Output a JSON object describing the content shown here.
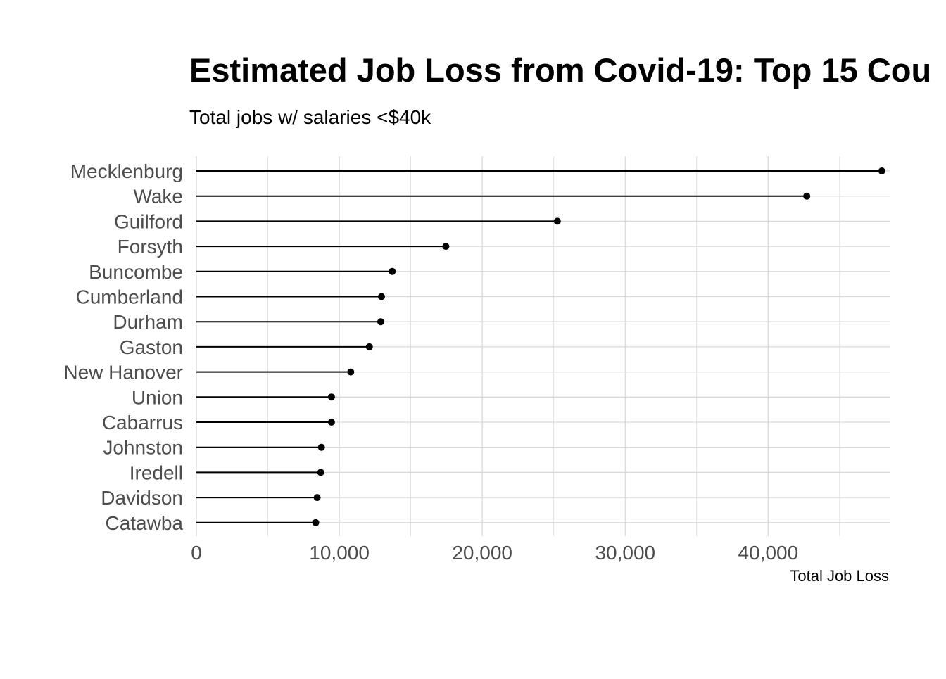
{
  "chart_data": {
    "type": "lollipop",
    "title": "Estimated Job Loss from Covid-19: Top 15 Cou",
    "subtitle": "Total jobs w/ salaries <$40k",
    "xlabel": "Total Job Loss",
    "ylabel": "",
    "xlim": [
      0,
      48500
    ],
    "x_major_ticks": [
      0,
      10000,
      20000,
      30000,
      40000
    ],
    "x_tick_labels": [
      "0",
      "10,000",
      "20,000",
      "30,000",
      "40,000"
    ],
    "x_minor_ticks": [
      5000,
      15000,
      25000,
      35000,
      45000
    ],
    "grid": true,
    "legend": "none",
    "colors": {
      "line": "#000000",
      "point": "#000000",
      "grid": "#d9d9d9",
      "axis_text": "#4d4d4d",
      "title": "#000000"
    },
    "categories": [
      "Mecklenburg",
      "Wake",
      "Guilford",
      "Forsyth",
      "Buncombe",
      "Cumberland",
      "Durham",
      "Gaston",
      "New Hanover",
      "Union",
      "Cabarrus",
      "Johnston",
      "Iredell",
      "Davidson",
      "Catawba"
    ],
    "values": [
      47950,
      42700,
      25250,
      17450,
      13700,
      12950,
      12900,
      12100,
      10800,
      9450,
      9450,
      8750,
      8700,
      8450,
      8350
    ]
  }
}
